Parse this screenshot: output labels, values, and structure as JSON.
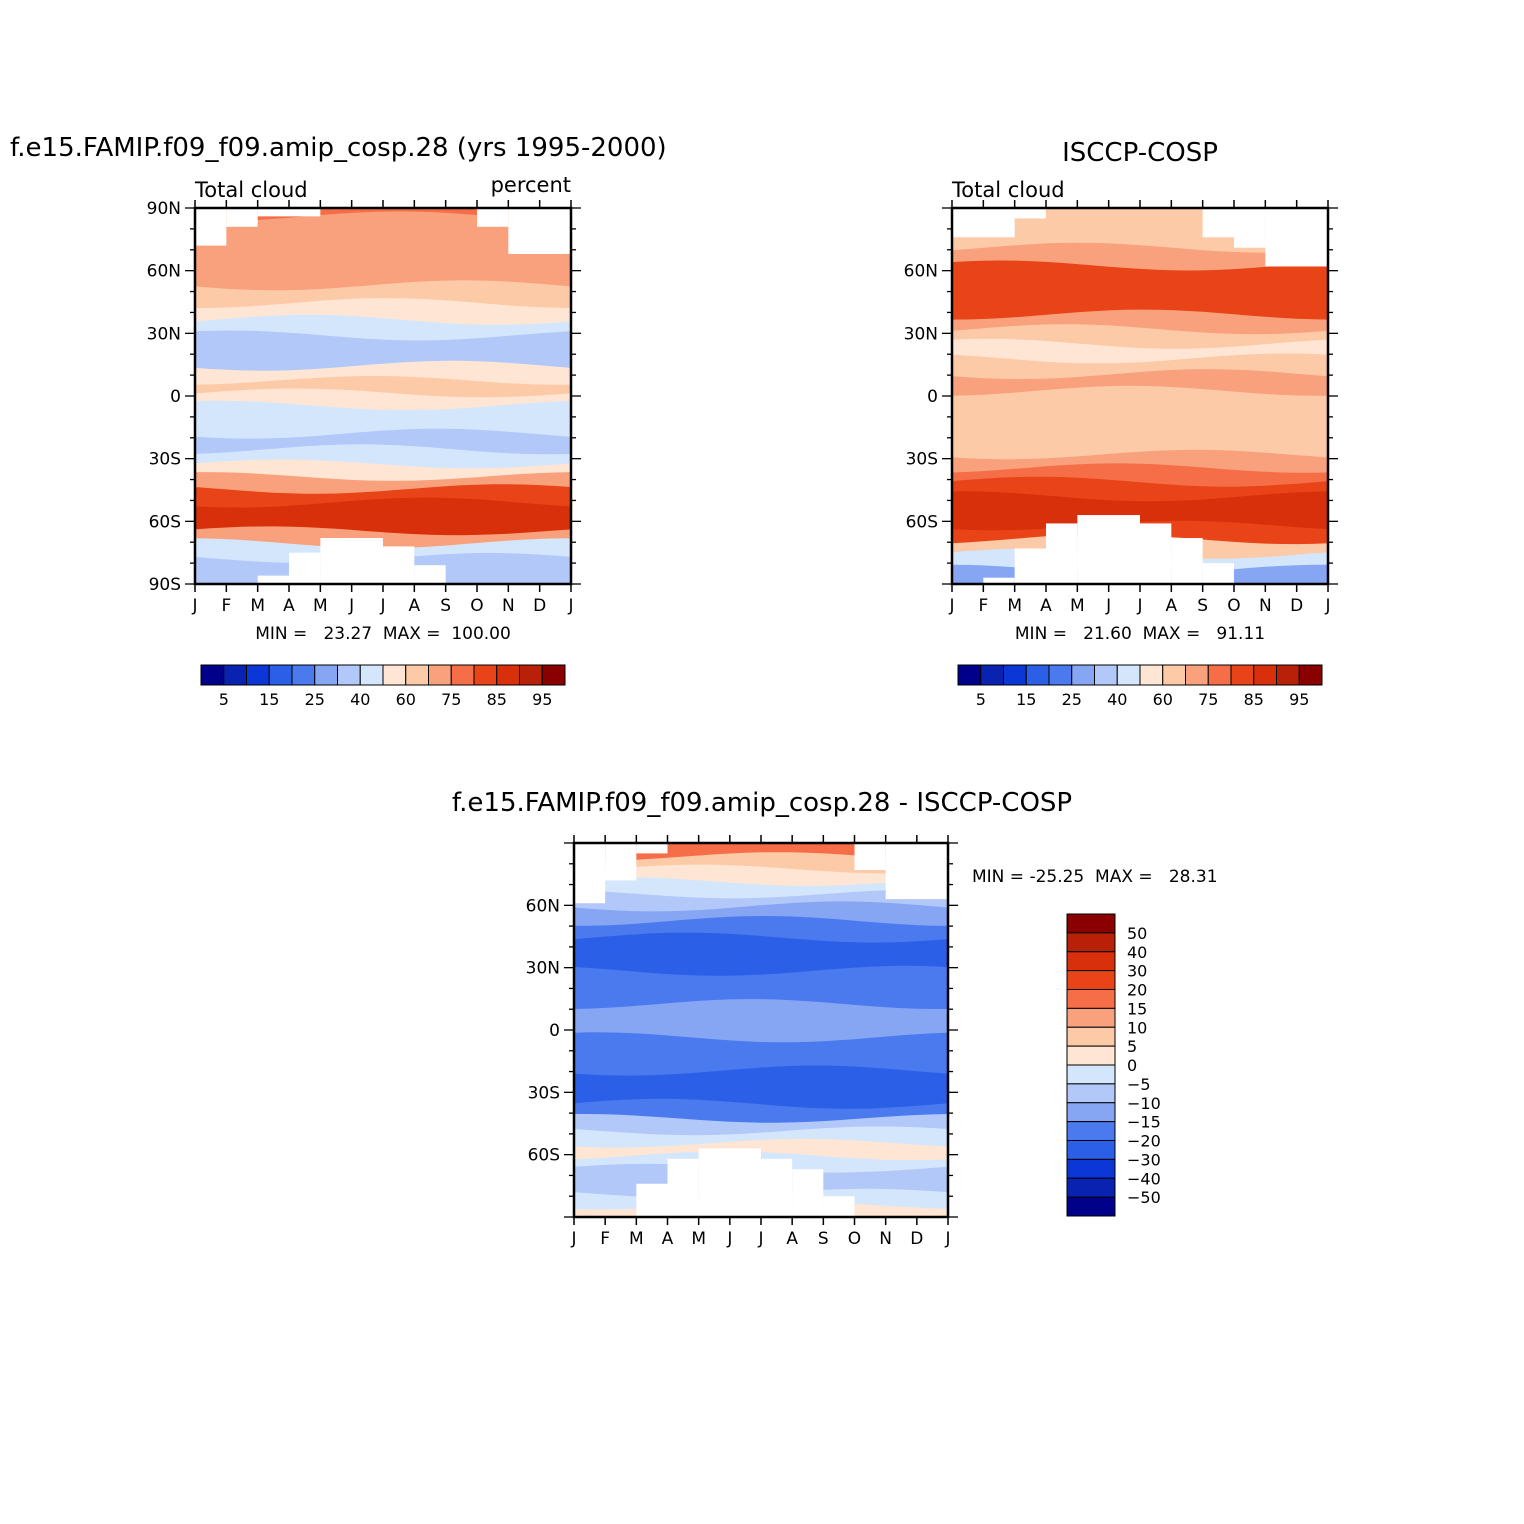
{
  "chart_data": [
    {
      "type": "heatmap",
      "title": "f.e15.FAMIP.f09_f09.amip_cosp.28 (yrs 1995-2000)",
      "left_label": "Total cloud",
      "right_label": "percent",
      "xticks": [
        "J",
        "F",
        "M",
        "A",
        "M",
        "J",
        "J",
        "A",
        "S",
        "O",
        "N",
        "D",
        "J"
      ],
      "yticks": [
        "90N",
        "60N",
        "30N",
        "0",
        "30S",
        "60S",
        "90S"
      ],
      "ylim": [
        -90,
        90
      ],
      "minmax": "MIN =   23.27  MAX =  100.00",
      "colorbar": {
        "labels": [
          "5",
          "15",
          "25",
          "40",
          "60",
          "75",
          "85",
          "95"
        ],
        "colors": [
          "#00008a",
          "#0a22b0",
          "#0a37d6",
          "#2b5fe8",
          "#4a7aee",
          "#86a6f4",
          "#b2c8f8",
          "#d4e6fc",
          "#ffe6d4",
          "#fdcaa8",
          "#f9a17c",
          "#f56e48",
          "#e84418",
          "#d8300a",
          "#b82008",
          "#8a0000"
        ]
      },
      "bands": [
        {
          "lat": 89,
          "v": 78
        },
        {
          "lat": 82,
          "v": 74
        },
        {
          "lat": 75,
          "v": 70
        },
        {
          "lat": 65,
          "v": 73
        },
        {
          "lat": 57,
          "v": 70
        },
        {
          "lat": 48,
          "v": 63
        },
        {
          "lat": 40,
          "v": 53
        },
        {
          "lat": 32,
          "v": 42
        },
        {
          "lat": 25,
          "v": 34
        },
        {
          "lat": 18,
          "v": 36
        },
        {
          "lat": 10,
          "v": 52
        },
        {
          "lat": 4,
          "v": 62
        },
        {
          "lat": -2,
          "v": 55
        },
        {
          "lat": -8,
          "v": 44
        },
        {
          "lat": -15,
          "v": 43
        },
        {
          "lat": -22,
          "v": 38
        },
        {
          "lat": -30,
          "v": 44
        },
        {
          "lat": -36,
          "v": 58
        },
        {
          "lat": -42,
          "v": 72
        },
        {
          "lat": -48,
          "v": 82
        },
        {
          "lat": -55,
          "v": 88
        },
        {
          "lat": -62,
          "v": 87
        },
        {
          "lat": -68,
          "v": 70
        },
        {
          "lat": -74,
          "v": 45
        },
        {
          "lat": -82,
          "v": 38
        },
        {
          "lat": -89,
          "v": 35
        }
      ],
      "nodata_north": [
        {
          "m0": 0,
          "m1": 1,
          "lat": 72
        },
        {
          "m0": 1,
          "m1": 2,
          "lat": 81
        },
        {
          "m0": 2,
          "m1": 4,
          "lat": 86
        },
        {
          "m0": 9,
          "m1": 10,
          "lat": 81
        },
        {
          "m0": 10,
          "m1": 12,
          "lat": 68
        }
      ],
      "nodata_south": [
        {
          "m0": 2,
          "m1": 3,
          "lat": -86
        },
        {
          "m0": 3,
          "m1": 4,
          "lat": -75
        },
        {
          "m0": 4,
          "m1": 6,
          "lat": -68
        },
        {
          "m0": 6,
          "m1": 7,
          "lat": -72
        },
        {
          "m0": 7,
          "m1": 8,
          "lat": -81
        }
      ]
    },
    {
      "type": "heatmap",
      "title": "ISCCP-COSP",
      "left_label": "Total cloud",
      "xticks": [
        "J",
        "F",
        "M",
        "A",
        "M",
        "J",
        "J",
        "A",
        "S",
        "O",
        "N",
        "D",
        "J"
      ],
      "yticks": [
        "60N",
        "30N",
        "0",
        "30S",
        "60S"
      ],
      "ylim": [
        -90,
        90
      ],
      "minmax": "MIN =   21.60  MAX =   91.11",
      "colorbar": {
        "labels": [
          "5",
          "15",
          "25",
          "40",
          "60",
          "75",
          "85",
          "95"
        ],
        "colors": [
          "#00008a",
          "#0a22b0",
          "#0a37d6",
          "#2b5fe8",
          "#4a7aee",
          "#86a6f4",
          "#b2c8f8",
          "#d4e6fc",
          "#ffe6d4",
          "#fdcaa8",
          "#f9a17c",
          "#f56e48",
          "#e84418",
          "#d8300a",
          "#b82008",
          "#8a0000"
        ]
      },
      "bands": [
        {
          "lat": 85,
          "v": 62
        },
        {
          "lat": 75,
          "v": 68
        },
        {
          "lat": 66,
          "v": 74
        },
        {
          "lat": 58,
          "v": 80
        },
        {
          "lat": 50,
          "v": 82
        },
        {
          "lat": 42,
          "v": 80
        },
        {
          "lat": 35,
          "v": 72
        },
        {
          "lat": 28,
          "v": 63
        },
        {
          "lat": 21,
          "v": 55
        },
        {
          "lat": 14,
          "v": 62
        },
        {
          "lat": 6,
          "v": 72
        },
        {
          "lat": -2,
          "v": 68
        },
        {
          "lat": -10,
          "v": 66
        },
        {
          "lat": -18,
          "v": 64
        },
        {
          "lat": -25,
          "v": 68
        },
        {
          "lat": -32,
          "v": 72
        },
        {
          "lat": -38,
          "v": 78
        },
        {
          "lat": -45,
          "v": 84
        },
        {
          "lat": -52,
          "v": 88
        },
        {
          "lat": -59,
          "v": 89
        },
        {
          "lat": -66,
          "v": 84
        },
        {
          "lat": -72,
          "v": 62
        },
        {
          "lat": -80,
          "v": 42
        },
        {
          "lat": -87,
          "v": 28
        }
      ],
      "nodata_north": [
        {
          "m0": 0,
          "m1": 2,
          "lat": 76
        },
        {
          "m0": 2,
          "m1": 3,
          "lat": 85
        },
        {
          "m0": 8,
          "m1": 9,
          "lat": 76
        },
        {
          "m0": 9,
          "m1": 10,
          "lat": 71
        },
        {
          "m0": 10,
          "m1": 12,
          "lat": 62
        }
      ],
      "nodata_south": [
        {
          "m0": 1,
          "m1": 2,
          "lat": -87
        },
        {
          "m0": 2,
          "m1": 3,
          "lat": -73
        },
        {
          "m0": 3,
          "m1": 4,
          "lat": -61
        },
        {
          "m0": 4,
          "m1": 6,
          "lat": -57
        },
        {
          "m0": 6,
          "m1": 7,
          "lat": -61
        },
        {
          "m0": 7,
          "m1": 8,
          "lat": -68
        },
        {
          "m0": 8,
          "m1": 9,
          "lat": -80
        }
      ]
    },
    {
      "type": "heatmap",
      "title": "f.e15.FAMIP.f09_f09.amip_cosp.28 - ISCCP-COSP",
      "xticks": [
        "J",
        "F",
        "M",
        "A",
        "M",
        "J",
        "J",
        "A",
        "S",
        "O",
        "N",
        "D",
        "J"
      ],
      "yticks": [
        "60N",
        "30N",
        "0",
        "30S",
        "60S"
      ],
      "ylim": [
        -90,
        90
      ],
      "minmax": "MIN = -25.25  MAX =   28.31",
      "colorbar": {
        "labels": [
          "50",
          "40",
          "30",
          "20",
          "15",
          "10",
          "5",
          "0",
          "-5",
          "-10",
          "-15",
          "-20",
          "-30",
          "-40",
          "-50"
        ],
        "colors": [
          "#8a0000",
          "#b82008",
          "#d8300a",
          "#e84418",
          "#f56e48",
          "#f9a17c",
          "#fdcaa8",
          "#ffe6d4",
          "#d4e6fc",
          "#b2c8f8",
          "#86a6f4",
          "#4a7aee",
          "#2b5fe8",
          "#0a37d6",
          "#0a22b0",
          "#00008a"
        ]
      },
      "bands": [
        {
          "lat": 86,
          "v": 18
        },
        {
          "lat": 80,
          "v": 6
        },
        {
          "lat": 74,
          "v": 1
        },
        {
          "lat": 68,
          "v": -3
        },
        {
          "lat": 62,
          "v": -6
        },
        {
          "lat": 56,
          "v": -12
        },
        {
          "lat": 48,
          "v": -18
        },
        {
          "lat": 40,
          "v": -22
        },
        {
          "lat": 32,
          "v": -24
        },
        {
          "lat": 24,
          "v": -20
        },
        {
          "lat": 16,
          "v": -17
        },
        {
          "lat": 8,
          "v": -14
        },
        {
          "lat": 0,
          "v": -12
        },
        {
          "lat": -8,
          "v": -18
        },
        {
          "lat": -16,
          "v": -20
        },
        {
          "lat": -24,
          "v": -24
        },
        {
          "lat": -32,
          "v": -23
        },
        {
          "lat": -40,
          "v": -17
        },
        {
          "lat": -46,
          "v": -10
        },
        {
          "lat": -52,
          "v": -4
        },
        {
          "lat": -58,
          "v": 2
        },
        {
          "lat": -64,
          "v": -2
        },
        {
          "lat": -70,
          "v": -6
        },
        {
          "lat": -76,
          "v": -9
        },
        {
          "lat": -82,
          "v": -4
        },
        {
          "lat": -88,
          "v": 3
        }
      ],
      "nodata_north": [
        {
          "m0": 0,
          "m1": 1,
          "lat": 61
        },
        {
          "m0": 1,
          "m1": 2,
          "lat": 72
        },
        {
          "m0": 2,
          "m1": 3,
          "lat": 85
        },
        {
          "m0": 9,
          "m1": 10,
          "lat": 77
        },
        {
          "m0": 10,
          "m1": 12,
          "lat": 63
        }
      ],
      "nodata_south": [
        {
          "m0": 2,
          "m1": 3,
          "lat": -74
        },
        {
          "m0": 3,
          "m1": 4,
          "lat": -62
        },
        {
          "m0": 4,
          "m1": 6,
          "lat": -57
        },
        {
          "m0": 6,
          "m1": 7,
          "lat": -62
        },
        {
          "m0": 7,
          "m1": 8,
          "lat": -67
        },
        {
          "m0": 8,
          "m1": 9,
          "lat": -80
        }
      ]
    }
  ]
}
